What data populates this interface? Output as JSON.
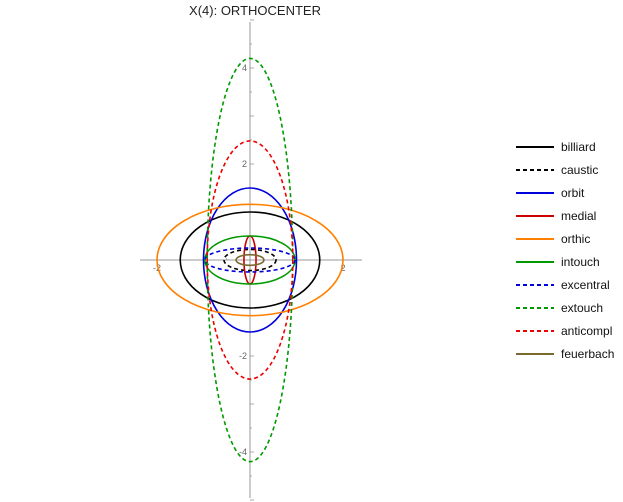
{
  "chart_data": {
    "type": "line",
    "title": "X(4): ORTHOCENTER",
    "xlabel": "",
    "ylabel": "",
    "xlim": [
      -2.1,
      2.4
    ],
    "ylim": [
      -5.2,
      5.2
    ],
    "x_ticks": [
      -2,
      2
    ],
    "y_ticks": [
      4,
      2,
      -2,
      -4
    ],
    "x_tick_labels": [
      "-2",
      "2"
    ],
    "y_tick_labels": [
      "4",
      "2",
      "-2",
      "-4"
    ],
    "grid": false,
    "legend_position": "right",
    "series": [
      {
        "name": "billiard",
        "color": "#000000",
        "dash": "solid",
        "a": 1.5,
        "b": 1.0
      },
      {
        "name": "caustic",
        "color": "#000000",
        "dash": "dashed",
        "a": 0.56,
        "b": 0.22
      },
      {
        "name": "orbit",
        "color": "#0000dd",
        "dash": "solid",
        "a": 1.0,
        "b": 1.5
      },
      {
        "name": "medial",
        "color": "#cc0000",
        "dash": "solid",
        "a": 0.13,
        "b": 0.5
      },
      {
        "name": "orthic",
        "color": "#ff8000",
        "dash": "solid",
        "a": 2.0,
        "b": 1.16
      },
      {
        "name": "intouch",
        "color": "#009900",
        "dash": "solid",
        "a": 0.97,
        "b": 0.5
      },
      {
        "name": "excentral",
        "color": "#0000dd",
        "dash": "dashed",
        "a": 0.97,
        "b": 0.25
      },
      {
        "name": "extouch",
        "color": "#009900",
        "dash": "dashed",
        "a": 0.92,
        "b": 4.2
      },
      {
        "name": "anticompl",
        "color": "#ee0000",
        "dash": "dashed",
        "a": 0.92,
        "b": 2.48
      },
      {
        "name": "feuerbach",
        "color": "#7a6a30",
        "dash": "solid",
        "a": 0.3,
        "b": 0.11
      }
    ]
  }
}
